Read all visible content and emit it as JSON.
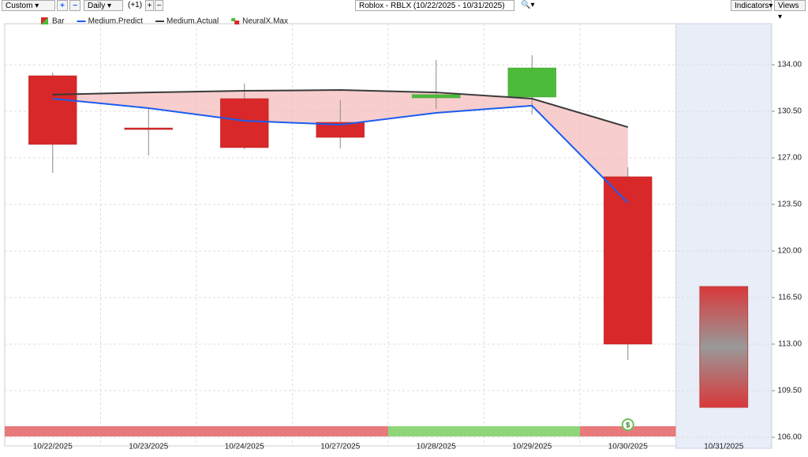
{
  "toolbar": {
    "range": "Custom",
    "period": "Daily",
    "offset": "(+1)",
    "title": "Roblox - RBLX (10/22/2025 - 10/31/2025)",
    "indicators": "Indicators",
    "views": "Views"
  },
  "chart_data": {
    "type": "candlestick",
    "categories": [
      "10/22/2025",
      "10/23/2025",
      "10/24/2025",
      "10/27/2025",
      "10/28/2025",
      "10/29/2025",
      "10/30/2025",
      "10/31/2025"
    ],
    "candles": {
      "name": "Bar",
      "up_color": "#4cbb3a",
      "down_color": "#d9282a",
      "open": [
        133.17,
        129.25,
        131.45,
        129.67,
        131.51,
        131.57,
        125.58,
        null
      ],
      "high": [
        133.41,
        130.74,
        132.58,
        131.33,
        134.36,
        134.71,
        126.29,
        null
      ],
      "low": [
        125.87,
        127.18,
        127.65,
        127.71,
        130.68,
        130.26,
        111.81,
        null
      ],
      "close": [
        128.01,
        129.25,
        127.77,
        128.54,
        131.75,
        133.76,
        113.0,
        null
      ]
    },
    "series": [
      {
        "name": "Medium.Predict",
        "color": "#1a5cf0",
        "values": [
          131.45,
          130.74,
          129.79,
          129.49,
          130.38,
          130.92,
          123.62,
          null
        ]
      },
      {
        "name": "Medium.Actual",
        "color": "#3a3a3a",
        "values": [
          131.75,
          131.92,
          132.04,
          132.1,
          131.92,
          131.45,
          129.31,
          null
        ]
      }
    ],
    "legend_extra": {
      "name": "NeuralX.Max"
    },
    "forecast_range": {
      "low": 108.25,
      "high": 117.33
    },
    "signal_colors": [
      "#e87a7c",
      "#e87a7c",
      "#e87a7c",
      "#e87a7c",
      "#8fd67a",
      "#8fd67a",
      "#e87a7c",
      null
    ],
    "signal_marker": "$",
    "ylim": [
      105.3,
      137.1
    ],
    "yticks": [
      {
        "value": 106,
        "label": "106.00"
      },
      {
        "value": 109.5,
        "label": "109.50"
      },
      {
        "value": 113,
        "label": "113.00"
      },
      {
        "value": 116.5,
        "label": "116.50"
      },
      {
        "value": 120,
        "label": "120.00"
      },
      {
        "value": 123.5,
        "label": "123.50"
      },
      {
        "value": 127,
        "label": "127.00"
      },
      {
        "value": 130.5,
        "label": "130.50"
      },
      {
        "value": 134,
        "label": "134.00"
      }
    ],
    "grid": true
  }
}
